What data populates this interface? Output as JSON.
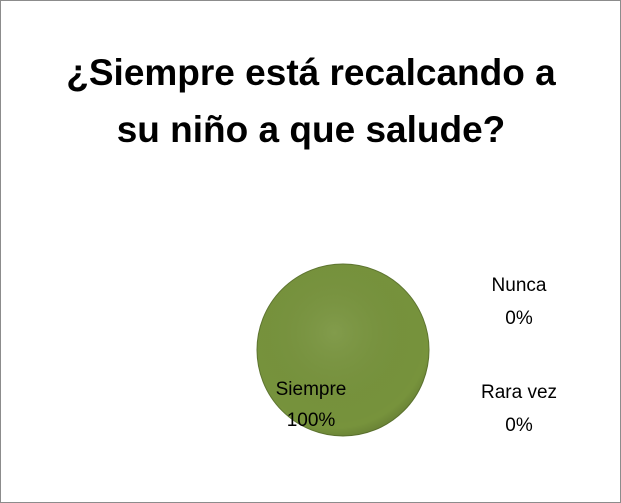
{
  "chart_data": {
    "type": "pie",
    "title": "¿Siempre está recalcando a su niño a que salude?",
    "categories": [
      "Siempre",
      "Nunca",
      "Rara vez"
    ],
    "values": [
      100,
      0,
      0
    ],
    "value_labels": [
      "100%",
      "0%",
      "0%"
    ],
    "colors": [
      "#77933c",
      "#4f81bd",
      "#c0504d"
    ]
  }
}
